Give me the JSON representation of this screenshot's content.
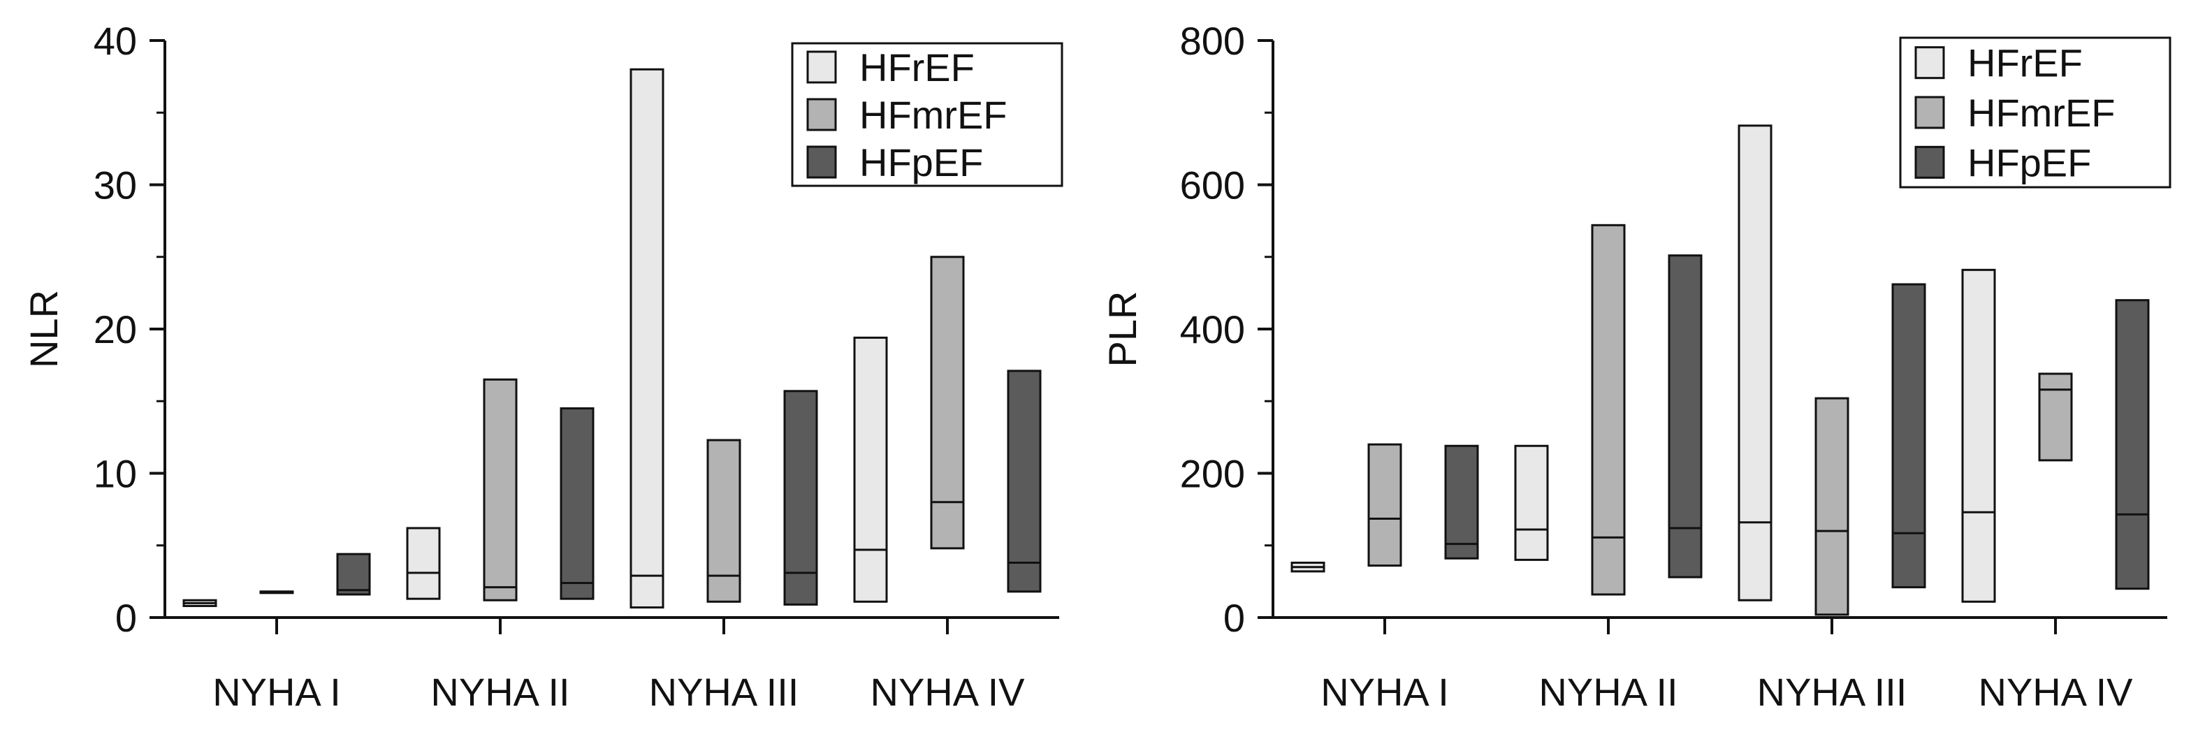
{
  "colors": {
    "HFrEF": "#e8e8e8",
    "HFmrEF": "#b3b3b3",
    "HFpEF": "#5b5b5b",
    "stroke": "#111111"
  },
  "chart_data": [
    {
      "type": "bar",
      "subtype": "floating-bar-with-median",
      "ylabel": "NLR",
      "xlabel": "",
      "ylim": [
        0,
        40
      ],
      "yticks": [
        "0",
        "10",
        "20",
        "30",
        "40"
      ],
      "categories": [
        "NYHA I",
        "NYHA II",
        "NYHA III",
        "NYHA IV"
      ],
      "legend": {
        "placement": "top-right",
        "entries": [
          "HFrEF",
          "HFmrEF",
          "HFpEF"
        ]
      },
      "series": [
        {
          "name": "HFrEF",
          "min": [
            0.8,
            1.3,
            0.7,
            1.1
          ],
          "median": [
            1.0,
            3.1,
            2.9,
            4.7
          ],
          "max": [
            1.2,
            6.2,
            38.0,
            19.4
          ]
        },
        {
          "name": "HFmrEF",
          "min": [
            1.8,
            1.2,
            1.1,
            4.8
          ],
          "median": [
            1.8,
            2.1,
            2.9,
            8.0
          ],
          "max": [
            1.8,
            16.5,
            12.3,
            25.0
          ]
        },
        {
          "name": "HFpEF",
          "min": [
            1.6,
            1.3,
            0.9,
            1.8
          ],
          "median": [
            1.9,
            2.4,
            3.1,
            3.8
          ],
          "max": [
            4.4,
            14.5,
            15.7,
            17.1
          ]
        }
      ]
    },
    {
      "type": "bar",
      "subtype": "floating-bar-with-median",
      "ylabel": "PLR",
      "xlabel": "",
      "ylim": [
        0,
        800
      ],
      "yticks": [
        "0",
        "200",
        "400",
        "600",
        "800"
      ],
      "categories": [
        "NYHA I",
        "NYHA II",
        "NYHA III",
        "NYHA IV"
      ],
      "legend": {
        "placement": "top-right",
        "entries": [
          "HFrEF",
          "HFmrEF",
          "HFpEF"
        ]
      },
      "series": [
        {
          "name": "HFrEF",
          "min": [
            64,
            80,
            24,
            22
          ],
          "median": [
            70,
            122,
            132,
            146
          ],
          "max": [
            76,
            238,
            682,
            482
          ]
        },
        {
          "name": "HFmrEF",
          "min": [
            72,
            32,
            4,
            218
          ],
          "median": [
            137,
            111,
            120,
            316
          ],
          "max": [
            240,
            544,
            304,
            338
          ]
        },
        {
          "name": "HFpEF",
          "min": [
            82,
            56,
            42,
            40
          ],
          "median": [
            102,
            124,
            117,
            143
          ],
          "max": [
            238,
            502,
            462,
            440
          ]
        }
      ]
    }
  ]
}
